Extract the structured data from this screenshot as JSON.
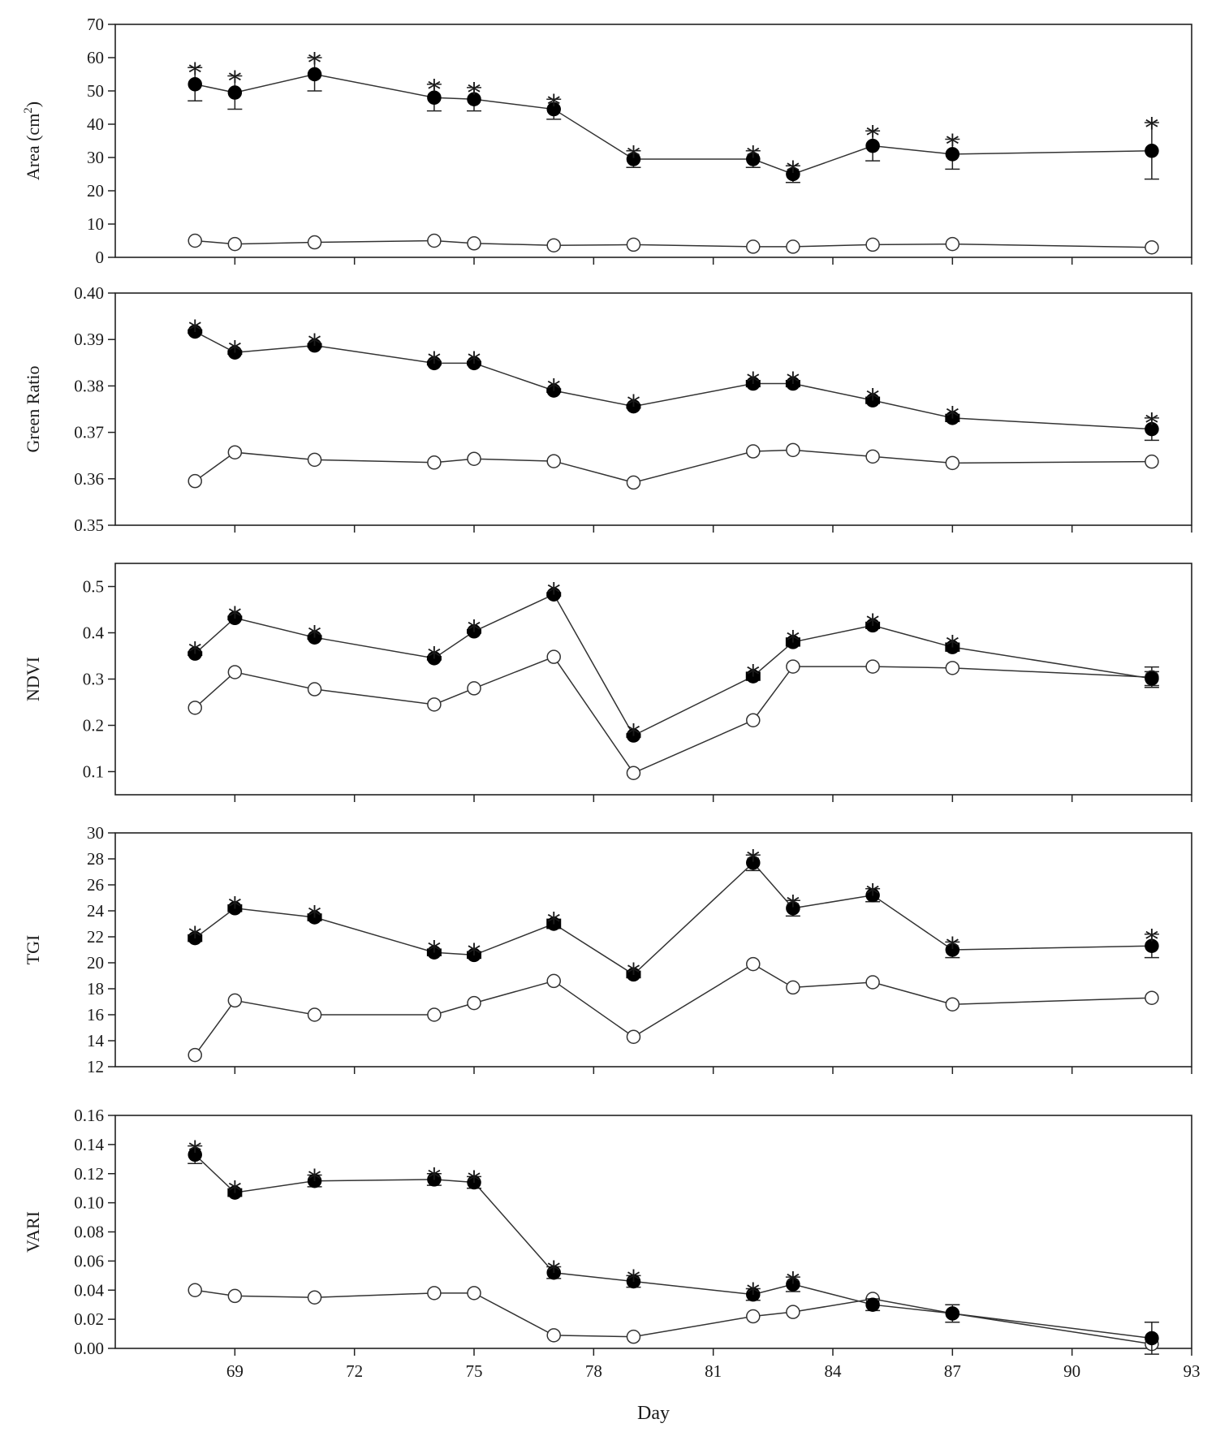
{
  "chart_data": [
    {
      "type": "line",
      "ylabel": "Area (cm2)",
      "ylabel_main": "Area (cm",
      "ylabel_sup": "2",
      "ylabel_close": ")",
      "ylim": [
        0,
        70
      ],
      "yticks": [
        "0",
        "10",
        "20",
        "30",
        "40",
        "50",
        "60",
        "70"
      ],
      "x": [
        68,
        69,
        71,
        74,
        75,
        77,
        79,
        82,
        83,
        85,
        87,
        92
      ],
      "series": [
        {
          "name": "filled",
          "marker": "filled",
          "values": [
            52,
            49.5,
            55,
            48,
            47.5,
            44.5,
            29.5,
            29.5,
            25,
            33.5,
            31,
            32
          ],
          "err": [
            5,
            5,
            5,
            4,
            3.5,
            3,
            2.5,
            2.5,
            2.5,
            4.5,
            4.5,
            8.5
          ],
          "significant": [
            true,
            true,
            true,
            true,
            true,
            true,
            true,
            true,
            true,
            true,
            true,
            true
          ]
        },
        {
          "name": "open",
          "marker": "open",
          "values": [
            5,
            4,
            4.5,
            5,
            4.2,
            3.6,
            3.8,
            3.2,
            3.2,
            3.8,
            4,
            3
          ]
        }
      ]
    },
    {
      "type": "line",
      "ylabel": "Green Ratio",
      "ylim": [
        0.35,
        0.4
      ],
      "yticks": [
        "0.35",
        "0.36",
        "0.37",
        "0.38",
        "0.39",
        "0.40"
      ],
      "x": [
        68,
        69,
        71,
        74,
        75,
        77,
        79,
        82,
        83,
        85,
        87,
        92
      ],
      "series": [
        {
          "name": "filled",
          "marker": "filled",
          "values": [
            0.3917,
            0.3872,
            0.3887,
            0.3849,
            0.3849,
            0.379,
            0.3756,
            0.3805,
            0.3805,
            0.3769,
            0.3731,
            0.3707
          ],
          "err": [
            0.0005,
            0.0005,
            0.0005,
            0.0005,
            0.0005,
            0.0005,
            0.0005,
            0.0008,
            0.0008,
            0.0008,
            0.0009,
            0.0024
          ],
          "significant": [
            true,
            true,
            true,
            true,
            true,
            true,
            true,
            true,
            true,
            true,
            true,
            true
          ]
        },
        {
          "name": "open",
          "marker": "open",
          "values": [
            0.3595,
            0.3657,
            0.3641,
            0.3635,
            0.3643,
            0.3638,
            0.3592,
            0.3659,
            0.3662,
            0.3648,
            0.3634,
            0.3637
          ]
        }
      ]
    },
    {
      "type": "line",
      "ylabel": "NDVI",
      "ylim": [
        0.05,
        0.55
      ],
      "yticks": [
        "0.1",
        "0.2",
        "0.3",
        "0.4",
        "0.5"
      ],
      "ytick_values": [
        0.1,
        0.2,
        0.3,
        0.4,
        0.5
      ],
      "x": [
        68,
        69,
        71,
        74,
        75,
        77,
        79,
        82,
        83,
        85,
        87,
        92
      ],
      "series": [
        {
          "name": "filled",
          "marker": "filled",
          "values": [
            0.355,
            0.432,
            0.39,
            0.345,
            0.403,
            0.483,
            0.178,
            0.306,
            0.38,
            0.416,
            0.369,
            0.301
          ],
          "err": [
            0.005,
            0.005,
            0.005,
            0.005,
            0.005,
            0.005,
            0.005,
            0.01,
            0.01,
            0.008,
            0.01,
            0.015
          ],
          "significant": [
            true,
            true,
            true,
            true,
            true,
            true,
            true,
            true,
            true,
            true,
            true,
            false
          ]
        },
        {
          "name": "open",
          "marker": "open",
          "values": [
            0.238,
            0.315,
            0.278,
            0.245,
            0.28,
            0.348,
            0.097,
            0.211,
            0.327,
            0.327,
            0.324,
            0.304
          ],
          "err": [
            0,
            0,
            0,
            0,
            0,
            0,
            0,
            0,
            0,
            0,
            0,
            0.022
          ]
        }
      ]
    },
    {
      "type": "line",
      "ylabel": "TGI",
      "ylim": [
        12,
        30
      ],
      "yticks": [
        "12",
        "14",
        "16",
        "18",
        "20",
        "22",
        "24",
        "26",
        "28",
        "30"
      ],
      "x": [
        68,
        69,
        71,
        74,
        75,
        77,
        79,
        82,
        83,
        85,
        87,
        92
      ],
      "series": [
        {
          "name": "filled",
          "marker": "filled",
          "values": [
            21.9,
            24.2,
            23.5,
            20.8,
            20.6,
            23,
            19.1,
            27.7,
            24.2,
            25.2,
            21,
            21.3
          ],
          "err": [
            0.3,
            0.3,
            0.3,
            0.3,
            0.3,
            0.4,
            0.3,
            0.6,
            0.6,
            0.5,
            0.6,
            0.9
          ],
          "significant": [
            true,
            true,
            true,
            true,
            true,
            true,
            true,
            true,
            true,
            true,
            true,
            true
          ]
        },
        {
          "name": "open",
          "marker": "open",
          "values": [
            12.9,
            17.1,
            16,
            16,
            16.9,
            18.6,
            14.3,
            19.9,
            18.1,
            18.5,
            16.8,
            17.3
          ]
        }
      ]
    },
    {
      "type": "line",
      "ylabel": "VARI",
      "xlabel": "Day",
      "xlim": [
        66,
        93
      ],
      "xticks": [
        "69",
        "72",
        "75",
        "78",
        "81",
        "84",
        "87",
        "90",
        "93"
      ],
      "ylim": [
        0,
        0.16
      ],
      "yticks": [
        "0.00",
        "0.02",
        "0.04",
        "0.06",
        "0.08",
        "0.10",
        "0.12",
        "0.14",
        "0.16"
      ],
      "x": [
        68,
        69,
        71,
        74,
        75,
        77,
        79,
        82,
        83,
        85,
        87,
        92
      ],
      "series": [
        {
          "name": "filled",
          "marker": "filled",
          "values": [
            0.133,
            0.107,
            0.115,
            0.116,
            0.114,
            0.052,
            0.046,
            0.037,
            0.044,
            0.03,
            0.024,
            0.007
          ],
          "err": [
            0.006,
            0.003,
            0.004,
            0.004,
            0.004,
            0.004,
            0.004,
            0.004,
            0.005,
            0.004,
            0.006,
            0.011
          ],
          "significant": [
            true,
            true,
            true,
            true,
            true,
            true,
            true,
            true,
            true,
            false,
            false,
            false
          ]
        },
        {
          "name": "open",
          "marker": "open",
          "values": [
            0.04,
            0.036,
            0.035,
            0.038,
            0.038,
            0.009,
            0.008,
            0.022,
            0.025,
            0.034,
            0.024,
            0.003
          ]
        }
      ]
    }
  ],
  "significance_marker": "*"
}
